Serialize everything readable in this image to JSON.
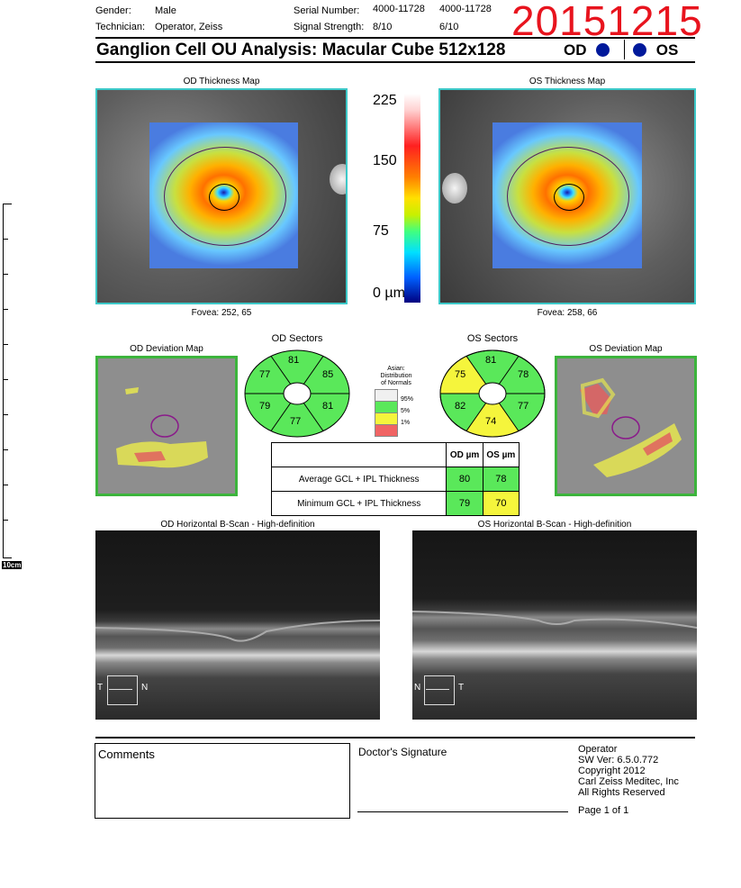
{
  "header": {
    "gender_label": "Gender:",
    "gender_value": "Male",
    "technician_label": "Technician:",
    "technician_value": "Operator, Zeiss",
    "serial_label": "Serial Number:",
    "serial_od": "4000-11728",
    "serial_os": "4000-11728",
    "signal_label": "Signal Strength:",
    "signal_od": "8/10",
    "signal_os": "6/10",
    "date_stamp": "20151215",
    "title": "Ganglion Cell OU Analysis: Macular Cube 512x128",
    "od_label": "OD",
    "os_label": "OS"
  },
  "ruler": {
    "label": "10cm"
  },
  "thickness": {
    "od_title": "OD Thickness Map",
    "os_title": "OS Thickness Map",
    "od_fovea": "Fovea: 252, 65",
    "os_fovea": "Fovea: 258, 66",
    "scale": [
      "225",
      "150",
      "75",
      "0 µm"
    ]
  },
  "deviation": {
    "od_title": "OD Deviation Map",
    "os_title": "OS Deviation Map"
  },
  "sectors": {
    "od_title": "OD Sectors",
    "os_title": "OS Sectors",
    "od_values": {
      "top": "81",
      "upper_right": "85",
      "lower_right": "81",
      "bottom": "77",
      "lower_left": "79",
      "upper_left": "77"
    },
    "os_values": {
      "top": "81",
      "upper_right": "78",
      "lower_right": "77",
      "bottom": "74",
      "lower_left": "82",
      "upper_left": "75"
    },
    "colors": {
      "green": "#5ae85a",
      "yellow": "#f5f53c",
      "red": "#f06464",
      "white": "#f0f0f0"
    }
  },
  "legend": {
    "title_lines": [
      "Asian:",
      "Distribution",
      "of Normals"
    ],
    "entries": [
      "95%",
      "5%",
      "1%"
    ]
  },
  "measurements": {
    "col_od": "OD µm",
    "col_os": "OS µm",
    "rows": [
      {
        "label": "Average GCL + IPL Thickness",
        "od": "80",
        "os": "78"
      },
      {
        "label": "Minimum GCL + IPL Thickness",
        "od": "79",
        "os": "70"
      }
    ]
  },
  "bscan": {
    "od_title": "OD Horizontal B-Scan - High-definition",
    "os_title": "OS Horizontal B-Scan - High-definition",
    "od_left": "T",
    "od_right": "N",
    "os_left": "N",
    "os_right": "T"
  },
  "footer": {
    "comments_label": "Comments",
    "signature_label": "Doctor's Signature",
    "operator": "Operator",
    "sw_version": "SW Ver: 6.5.0.772",
    "copyright": "Copyright 2012",
    "company": "Carl Zeiss Meditec, Inc",
    "rights": "All Rights Reserved",
    "page": "Page 1 of 1"
  }
}
